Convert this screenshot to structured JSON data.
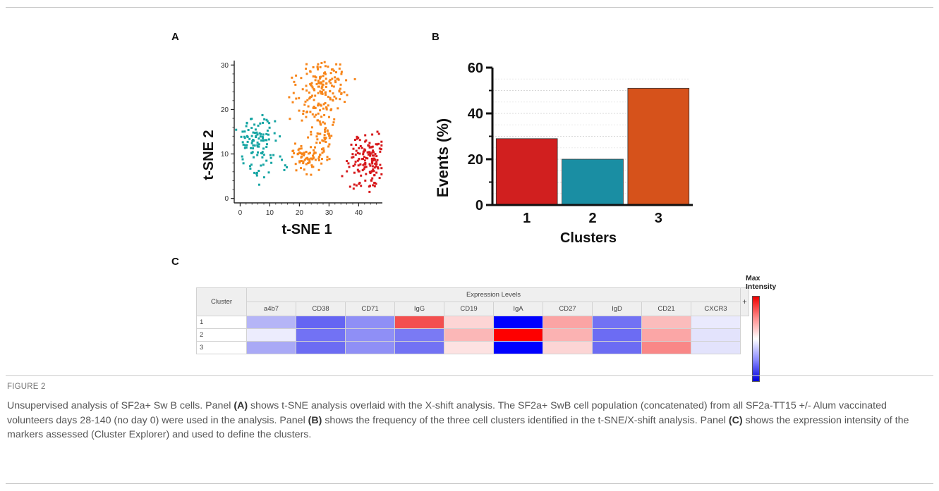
{
  "panels": {
    "a": "A",
    "b": "B",
    "c": "C"
  },
  "tsne": {
    "xlabel": "t-SNE 1",
    "ylabel": "t-SNE 2",
    "xticks": [
      "0",
      "10",
      "20",
      "30",
      "40"
    ],
    "yticks": [
      "0",
      "10",
      "20",
      "30"
    ],
    "colors": {
      "cluster_teal": "#16a5a3",
      "cluster_orange": "#f7861b",
      "cluster_red": "#d7191c"
    }
  },
  "chart_data": {
    "type": "bar",
    "categories": [
      "1",
      "2",
      "3"
    ],
    "values": [
      29,
      20,
      51
    ],
    "xlabel": "Clusters",
    "ylabel": "Events (%)",
    "ylim": [
      0,
      60
    ],
    "yticks": [
      "0",
      "20",
      "40",
      "60"
    ],
    "colors": [
      "#d11f1f",
      "#1a8ea3",
      "#d6521b"
    ],
    "grid": true
  },
  "heatmap": {
    "cluster_header": "Cluster",
    "group_header": "Expression Levels",
    "plus_label": "+",
    "markers": [
      "a4b7",
      "CD38",
      "CD71",
      "IgG",
      "CD19",
      "IgA",
      "CD27",
      "IgD",
      "CD21",
      "CXCR3"
    ],
    "rows": [
      {
        "label": "1",
        "colors": [
          "#b5b5f7",
          "#6565f3",
          "#8f8ff6",
          "#f34f4f",
          "#fdd5d5",
          "#0000ff",
          "#fba4a4",
          "#7272f4",
          "#fbbcbc",
          "#eaeafd"
        ]
      },
      {
        "label": "2",
        "colors": [
          "#ececfd",
          "#7272f4",
          "#8f8ff6",
          "#7a7af4",
          "#fbb7b7",
          "#fe0000",
          "#fbb2b2",
          "#6c6cf3",
          "#fba6a6",
          "#e3e3fc"
        ]
      },
      {
        "label": "3",
        "colors": [
          "#a9a9f6",
          "#6c6cf3",
          "#8f8ff6",
          "#7272f4",
          "#fde2e2",
          "#0000ff",
          "#fcd5d5",
          "#6c6cf3",
          "#f98787",
          "#e3e3fc"
        ]
      }
    ],
    "colorbar_label_1": "Max",
    "colorbar_label_2": "Intensity"
  },
  "figure_label": "FIGURE 2",
  "caption": "Unsupervised analysis of SF2a+ Sw B cells. Panel (A) shows t-SNE analysis overlaid with the X-shift analysis. The SF2a+ SwB cell population (concatenated) from all SF2a-TT15 +/- Alum vaccinated volunteers days 28-140 (no day 0) were used in the analysis. Panel (B) shows the frequency of the three cell clusters identified in the t-SNE/X-shift analysis. Panel (C) shows the expression intensity of the markers assessed (Cluster Explorer) and used to define the clusters."
}
